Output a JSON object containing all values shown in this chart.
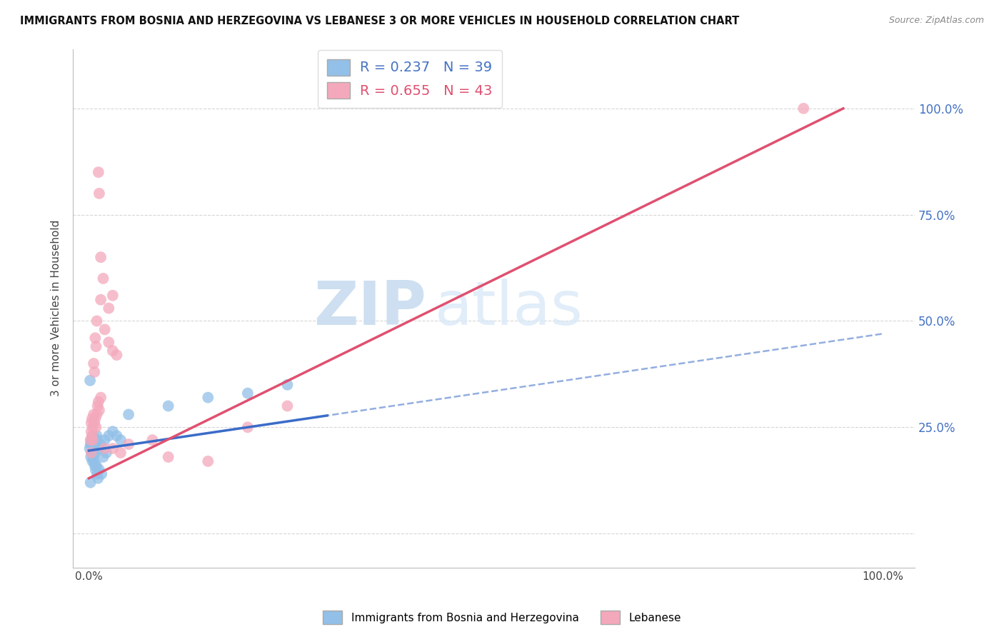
{
  "title": "IMMIGRANTS FROM BOSNIA AND HERZEGOVINA VS LEBANESE 3 OR MORE VEHICLES IN HOUSEHOLD CORRELATION CHART",
  "source": "Source: ZipAtlas.com",
  "ylabel": "3 or more Vehicles in Household",
  "legend_blue_r": "R = 0.237",
  "legend_blue_n": "N = 39",
  "legend_pink_r": "R = 0.655",
  "legend_pink_n": "N = 43",
  "legend_label_blue": "Immigrants from Bosnia and Herzegovina",
  "legend_label_pink": "Lebanese",
  "blue_color": "#92C0E8",
  "pink_color": "#F4A8BB",
  "line_blue": "#3B6CC8",
  "line_pink": "#E05070",
  "watermark_zip": "ZIP",
  "watermark_atlas": "atlas",
  "blue_scatter_x": [
    0.2,
    0.3,
    0.4,
    0.5,
    0.6,
    0.7,
    0.8,
    0.9,
    1.0,
    1.1,
    1.2,
    1.5,
    1.8,
    2.0,
    2.2,
    2.5,
    3.0,
    3.5,
    4.0,
    0.15,
    0.25,
    0.35,
    0.45,
    0.55,
    0.65,
    0.75,
    0.85,
    0.95,
    1.05,
    1.15,
    1.3,
    1.6,
    5.0,
    10.0,
    15.0,
    20.0,
    25.0,
    0.1,
    0.2
  ],
  "blue_scatter_y": [
    21,
    22,
    21,
    23,
    20,
    22,
    19,
    21,
    23,
    22,
    20,
    21,
    18,
    22,
    19,
    23,
    24,
    23,
    22,
    36,
    18,
    19,
    17,
    18,
    17,
    16,
    15,
    16,
    14,
    13,
    15,
    14,
    28,
    30,
    32,
    33,
    35,
    20,
    12
  ],
  "pink_scatter_x": [
    0.3,
    0.4,
    0.5,
    0.6,
    0.7,
    0.8,
    0.9,
    1.0,
    1.1,
    1.2,
    1.3,
    1.5,
    0.2,
    0.3,
    0.4,
    0.5,
    0.6,
    0.7,
    0.8,
    0.9,
    1.0,
    1.5,
    2.0,
    2.5,
    3.0,
    3.5,
    1.2,
    1.3,
    1.5,
    1.8,
    2.5,
    3.0,
    2.0,
    3.0,
    4.0,
    5.0,
    8.0,
    10.0,
    15.0,
    20.0,
    25.0,
    90.0,
    0.3
  ],
  "pink_scatter_y": [
    26,
    27,
    25,
    28,
    26,
    27,
    25,
    28,
    30,
    31,
    29,
    32,
    22,
    24,
    23,
    22,
    40,
    38,
    46,
    44,
    50,
    55,
    48,
    45,
    43,
    42,
    85,
    80,
    65,
    60,
    53,
    56,
    20,
    20,
    19,
    21,
    22,
    18,
    17,
    25,
    30,
    100,
    19
  ],
  "xlim": [
    0,
    100
  ],
  "ylim": [
    0,
    110
  ],
  "blue_line_x0": 0,
  "blue_line_y0": 19.5,
  "blue_line_x1": 100,
  "blue_line_y1": 47,
  "blue_solid_x1": 30,
  "pink_line_x0": 0,
  "pink_line_y0": 13,
  "pink_line_x1": 95,
  "pink_line_y1": 100
}
